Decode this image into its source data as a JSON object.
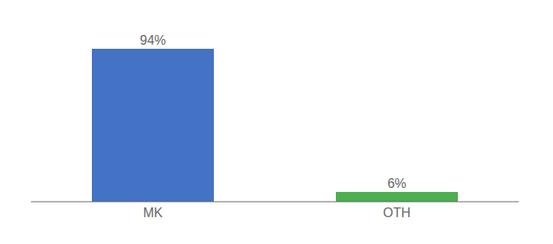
{
  "chart_data": {
    "type": "bar",
    "categories": [
      "MK",
      "OTH"
    ],
    "values": [
      94,
      6
    ],
    "value_labels": [
      "94%",
      "6%"
    ],
    "colors": [
      "#4472C4",
      "#4CAF50"
    ],
    "ylim": [
      0,
      108
    ],
    "data_labels": true,
    "tick_labels": "x",
    "grid": false
  }
}
